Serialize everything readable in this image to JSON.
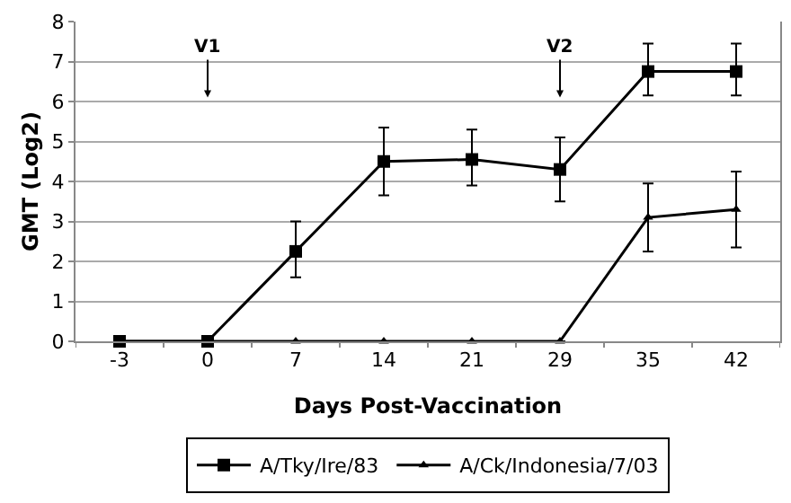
{
  "chart_data": {
    "type": "line",
    "xlabel": "Days Post-Vaccination",
    "ylabel": "GMT (Log2)",
    "categories": [
      "-3",
      "0",
      "7",
      "14",
      "21",
      "29",
      "35",
      "42"
    ],
    "series": [
      {
        "name": "A/Tky/Ire/83",
        "color": "#000000",
        "marker": "square",
        "values": [
          0,
          0,
          2.25,
          4.5,
          4.55,
          4.3,
          6.75,
          6.75
        ],
        "errors": [
          null,
          null,
          [
            1.6,
            3.0
          ],
          [
            3.65,
            5.35
          ],
          [
            3.9,
            5.3
          ],
          [
            3.5,
            5.1
          ],
          [
            6.15,
            7.45
          ],
          [
            6.15,
            7.45
          ]
        ]
      },
      {
        "name": "A/Ck/Indonesia/7/03",
        "color": "#000000",
        "marker": "triangle",
        "values": [
          0,
          0,
          0,
          0,
          0,
          0,
          3.1,
          3.3
        ],
        "errors": [
          null,
          null,
          null,
          null,
          null,
          null,
          [
            2.25,
            3.95
          ],
          [
            2.35,
            4.25
          ]
        ]
      }
    ],
    "annotations": [
      {
        "text": "V1",
        "x": "0",
        "y": 6.1
      },
      {
        "text": "V2",
        "x": "29",
        "y": 6.1
      }
    ],
    "ylim": [
      0,
      8
    ],
    "yticks": [
      0,
      1,
      2,
      3,
      4,
      5,
      6,
      7,
      8
    ],
    "grid": "y",
    "legend": "bottom"
  }
}
